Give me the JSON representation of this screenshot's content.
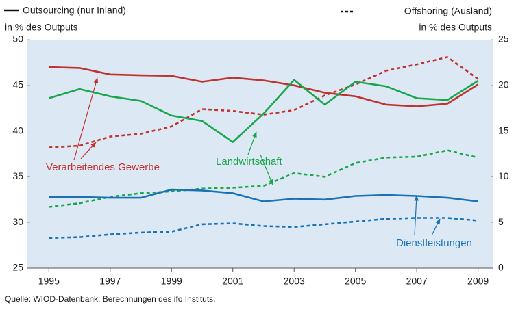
{
  "chart_data": {
    "type": "line",
    "y_label": [
      "Outsourcing (nur Inland)",
      "in % des Outputs"
    ],
    "y2_label": [
      "Offshoring (Ausland)",
      "in % des Outputs"
    ],
    "source": "Quelle: WIOD-Datenbank; Berechnungen des ifo Instituts.",
    "x": [
      1995,
      1996,
      1997,
      1998,
      1999,
      2000,
      2001,
      2002,
      2003,
      2004,
      2005,
      2006,
      2007,
      2008,
      2009
    ],
    "xlim": [
      1994.3,
      2009.5
    ],
    "xticks": [
      1995,
      1997,
      1999,
      2001,
      2003,
      2005,
      2007,
      2009
    ],
    "ylim": [
      25,
      50
    ],
    "yticks": [
      25,
      30,
      35,
      40,
      45,
      50
    ],
    "y2lim": [
      0,
      25
    ],
    "y2ticks": [
      0,
      5,
      10,
      15,
      20,
      25
    ],
    "grid": false,
    "series": [
      {
        "name": "Verarbeitendes Gewerbe",
        "color": "#c1312d",
        "values": [
          47.0,
          46.9,
          46.2,
          46.1,
          46.05,
          45.4,
          45.85,
          45.55,
          45.0,
          44.2,
          43.8,
          42.9,
          42.7,
          43.0,
          45.1
        ],
        "offshoring": [
          13.2,
          13.4,
          14.4,
          14.7,
          15.5,
          17.4,
          17.2,
          16.8,
          17.3,
          18.9,
          20.1,
          21.6,
          22.3,
          23.1,
          20.7
        ]
      },
      {
        "name": "Landwirtschaft",
        "color": "#1aa64a",
        "values": [
          43.6,
          44.6,
          43.8,
          43.3,
          41.7,
          41.1,
          38.8,
          41.9,
          45.6,
          42.9,
          45.4,
          44.9,
          43.6,
          43.4,
          45.5
        ],
        "offshoring": [
          6.7,
          7.1,
          7.8,
          8.2,
          8.4,
          8.7,
          8.8,
          9.0,
          10.4,
          10.0,
          11.5,
          12.1,
          12.2,
          12.9,
          12.1
        ]
      },
      {
        "name": "Dienstleistungen",
        "color": "#1a72b5",
        "values": [
          32.8,
          32.8,
          32.7,
          32.7,
          33.6,
          33.5,
          33.2,
          32.3,
          32.6,
          32.5,
          32.9,
          33.0,
          32.9,
          32.7,
          32.3
        ],
        "offshoring": [
          3.3,
          3.4,
          3.7,
          3.9,
          4.0,
          4.8,
          4.9,
          4.6,
          4.5,
          4.8,
          5.1,
          5.4,
          5.5,
          5.5,
          5.2
        ]
      }
    ]
  }
}
